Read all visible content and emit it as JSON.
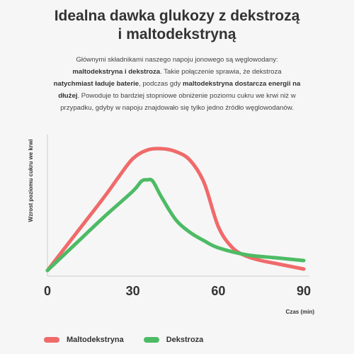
{
  "header": {
    "title_line1": "Idealna dawka glukozy z dekstrozą",
    "title_line2": "i maltodekstryną"
  },
  "description": {
    "p1": "Głównymi składnikami naszego napoju jonowego są węglowodany:",
    "b1": "maltodekstryna i dekstroza",
    "p2": ". Takie połączenie sprawia, że dekstroza",
    "b2": "natychmiast ładuje baterie",
    "p3": ", podczas gdy ",
    "b3": "maltodekstryna dostarcza energii na dłużej",
    "p4": ". Powoduje to bardziej stopniowe obniżenie poziomu cukru we krwi niż w przypadku, gdyby w napoju znajdowało się tylko jedno źródło węglowodanów."
  },
  "chart_data": {
    "type": "line",
    "title": "",
    "xlabel": "Czas (min)",
    "ylabel": "Wzrost poziomu cukru we krwi",
    "xlim": [
      0,
      90
    ],
    "ylim": [
      0,
      1
    ],
    "xticks": [
      0,
      30,
      60,
      90
    ],
    "grid": false,
    "legend_position": "bottom-left",
    "series": [
      {
        "name": "Maltodekstryna",
        "color": "#f06a6a",
        "x": [
          0,
          10,
          20,
          25,
          30,
          35,
          40,
          45,
          50,
          55,
          60,
          65,
          70,
          75,
          80,
          90
        ],
        "y": [
          0.04,
          0.3,
          0.56,
          0.7,
          0.83,
          0.89,
          0.9,
          0.88,
          0.82,
          0.66,
          0.35,
          0.2,
          0.14,
          0.11,
          0.09,
          0.05
        ]
      },
      {
        "name": "Dekstroza",
        "color": "#4dbb65",
        "x": [
          0,
          10,
          20,
          30,
          33,
          35,
          37,
          40,
          45,
          50,
          55,
          60,
          70,
          80,
          90
        ],
        "y": [
          0.04,
          0.23,
          0.42,
          0.6,
          0.67,
          0.68,
          0.67,
          0.56,
          0.4,
          0.31,
          0.25,
          0.2,
          0.15,
          0.13,
          0.11
        ]
      }
    ]
  }
}
